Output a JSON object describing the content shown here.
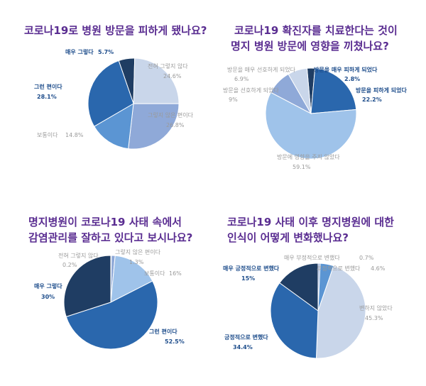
{
  "chart_data": [
    {
      "type": "pie",
      "title": "코로나19로 병원 방문을 피하게 됐나요?",
      "series": [
        {
          "label": "매우 그렇다",
          "value": 5.7,
          "color": "#1f3d63",
          "dark": true
        },
        {
          "label": "전혀 그렇지 않다",
          "value": 24.6,
          "color": "#c9d6ea",
          "dark": false
        },
        {
          "label": "그렇지 않은 편이다",
          "value": 26.8,
          "color": "#8fa9d8",
          "dark": false
        },
        {
          "label": "보통이다",
          "value": 14.8,
          "color": "#5b95d3",
          "dark": false
        },
        {
          "label": "그런 편이다",
          "value": 28.1,
          "color": "#2a67ad",
          "dark": true
        }
      ],
      "value_labels": [
        "5.7%",
        "24.6%",
        "26.8%",
        "14.8%",
        "28.1%"
      ]
    },
    {
      "type": "pie",
      "title": "코로나19 확진자를 치료한다는 것이 명지 병원 방문에 영향을 끼쳤나요?",
      "title_lines": [
        "코로나19 확진자를 치료한다는 것이",
        "명지 병원 방문에 영향을 끼쳤나요?"
      ],
      "series": [
        {
          "label": "방문을 매우 피하게 되었다",
          "value": 2.8,
          "color": "#1f3d63",
          "dark": true
        },
        {
          "label": "방문을 피하게 되었다",
          "value": 22.2,
          "color": "#2a67ad",
          "dark": true
        },
        {
          "label": "방문에 영향을 주지 않았다",
          "value": 59.1,
          "color": "#9fc3ea",
          "dark": false
        },
        {
          "label": "방문을 선호하게 되었다",
          "value": 9.0,
          "color": "#8fa9d8",
          "dark": false
        },
        {
          "label": "방문을 매우 선호하게 되었다",
          "value": 6.9,
          "color": "#c9d6ea",
          "dark": false
        }
      ],
      "value_labels": [
        "2.8%",
        "22.2%",
        "59.1%",
        "9%",
        "6.9%"
      ]
    },
    {
      "type": "pie",
      "title": "명지병원이 코로나19 사태 속에서 감염관리를 잘하고 있다고 보시나요?",
      "title_lines": [
        "명지병원이 코로나19 사태 속에서",
        "감염관리를 잘하고 있다고 보시나요?"
      ],
      "series": [
        {
          "label": "전혀 그렇지 않다",
          "value": 0.2,
          "color": "#c9d6ea",
          "dark": false
        },
        {
          "label": "그렇지 않은 편이다",
          "value": 1.3,
          "color": "#8fa9d8",
          "dark": false
        },
        {
          "label": "보통이다",
          "value": 16,
          "color": "#9fc3ea",
          "dark": false
        },
        {
          "label": "그런 편이다",
          "value": 52.5,
          "color": "#2a67ad",
          "dark": true
        },
        {
          "label": "매우 그렇다",
          "value": 30,
          "color": "#1f3d63",
          "dark": true
        }
      ],
      "value_labels": [
        "0.2%",
        "1.3%",
        "16%",
        "52.5%",
        "30%"
      ]
    },
    {
      "type": "pie",
      "title": "코로나19 사태 이후 명지병원에 대한 인식이 어떻게 변화했나요?",
      "title_lines": [
        "코로나19 사태 이후 명지병원에 대한",
        "인식이 어떻게 변화했나요?"
      ],
      "series": [
        {
          "label": "매우 부정적으로 변했다",
          "value": 0.7,
          "color": "#8fa9d8",
          "dark": false
        },
        {
          "label": "부정적으로 변했다",
          "value": 4.6,
          "color": "#5b95d3",
          "dark": false
        },
        {
          "label": "변하지 않았다",
          "value": 45.3,
          "color": "#c9d6ea",
          "dark": false
        },
        {
          "label": "긍정적으로 변했다",
          "value": 34.4,
          "color": "#2a67ad",
          "dark": true
        },
        {
          "label": "매우 긍정적으로 변했다",
          "value": 15,
          "color": "#1f3d63",
          "dark": true
        }
      ],
      "value_labels": [
        "0.7%",
        "4.6%",
        "45.3%",
        "34.4%",
        "15%"
      ]
    }
  ]
}
